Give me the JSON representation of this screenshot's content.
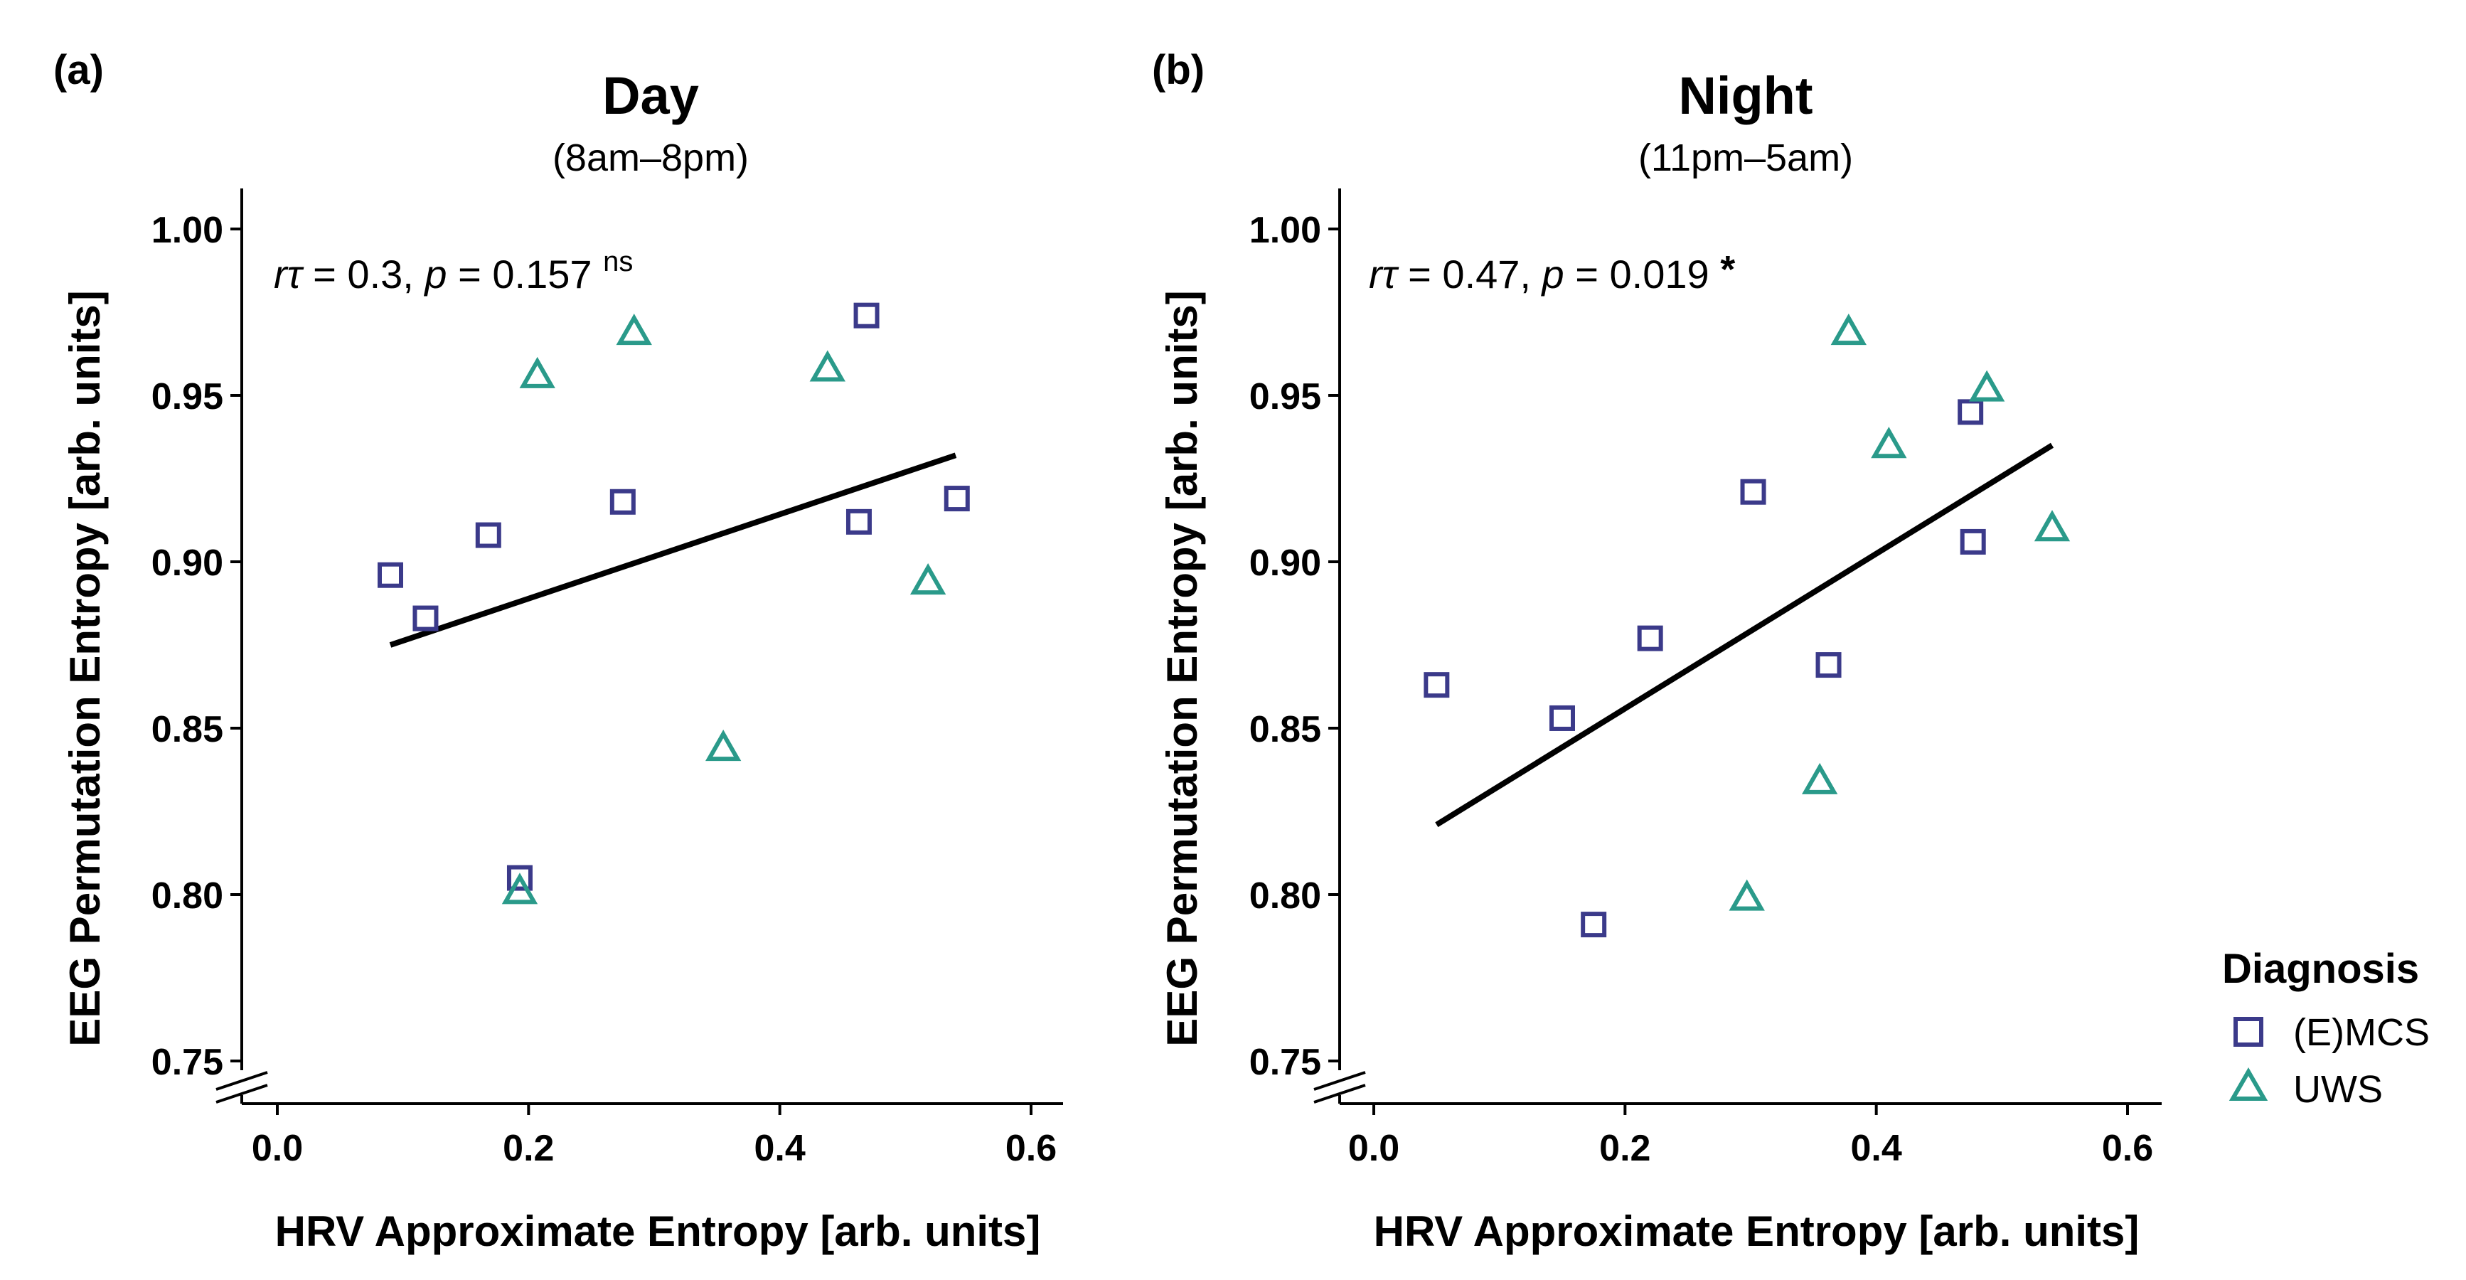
{
  "colors": {
    "emcs": "#3b3a8a",
    "uws": "#2a9a8a",
    "axis": "#000000",
    "fit": "#000000"
  },
  "legend": {
    "title": "Diagnosis",
    "items": [
      {
        "label": "(E)MCS",
        "marker": "square",
        "color": "#3b3a8a"
      },
      {
        "label": "UWS",
        "marker": "triangle",
        "color": "#2a9a8a"
      }
    ]
  },
  "chart_data": [
    {
      "type": "scatter",
      "panel": "(a)",
      "title": "Day",
      "subtitle": "(8am–8pm)",
      "xlabel": "HRV Approximate Entropy [arb. units]",
      "ylabel": "EEG Permutation Entropy [arb. units]",
      "xlim": [
        -0.03,
        0.63
      ],
      "ylim": [
        0.74,
        1.012
      ],
      "xticks": [
        0.0,
        0.2,
        0.4,
        0.6
      ],
      "xtick_labels": [
        "0.0",
        "0.2",
        "0.4",
        "0.6"
      ],
      "yticks": [
        0.75,
        0.8,
        0.85,
        0.9,
        0.95,
        1.0
      ],
      "ytick_labels": [
        "0.75",
        "0.80",
        "0.85",
        "0.90",
        "0.95",
        "1.00"
      ],
      "stat": {
        "prefix": "r",
        "tau": "τ",
        "eq": " = 0.3, ",
        "p": "p",
        "p_eq": " = 0.157 ",
        "sig": "ns"
      },
      "fit_line": {
        "x": [
          0.09,
          0.54
        ],
        "y": [
          0.875,
          0.932
        ]
      },
      "series": [
        {
          "name": "(E)MCS",
          "marker": "square",
          "x": [
            0.09,
            0.118,
            0.168,
            0.193,
            0.275,
            0.463,
            0.469,
            0.541
          ],
          "y": [
            0.896,
            0.883,
            0.908,
            0.805,
            0.918,
            0.912,
            0.974,
            0.919
          ]
        },
        {
          "name": "UWS",
          "marker": "triangle",
          "x": [
            0.193,
            0.207,
            0.284,
            0.355,
            0.438,
            0.518
          ],
          "y": [
            0.801,
            0.956,
            0.969,
            0.844,
            0.958,
            0.894
          ]
        }
      ]
    },
    {
      "type": "scatter",
      "panel": "(b)",
      "title": "Night",
      "subtitle": "(11pm–5am)",
      "xlabel": "HRV Approximate Entropy [arb. units]",
      "ylabel": "EEG Permutation Entropy [arb. units]",
      "xlim": [
        -0.03,
        0.63
      ],
      "ylim": [
        0.74,
        1.012
      ],
      "xticks": [
        0.0,
        0.2,
        0.4,
        0.6
      ],
      "xtick_labels": [
        "0.0",
        "0.2",
        "0.4",
        "0.6"
      ],
      "yticks": [
        0.75,
        0.8,
        0.85,
        0.9,
        0.95,
        1.0
      ],
      "ytick_labels": [
        "0.75",
        "0.80",
        "0.85",
        "0.90",
        "0.95",
        "1.00"
      ],
      "stat": {
        "prefix": "r",
        "tau": "τ",
        "eq": " = 0.47, ",
        "p": "p",
        "p_eq": " = 0.019 ",
        "sig": "*"
      },
      "fit_line": {
        "x": [
          0.05,
          0.54
        ],
        "y": [
          0.821,
          0.935
        ]
      },
      "series": [
        {
          "name": "(E)MCS",
          "marker": "square",
          "x": [
            0.05,
            0.15,
            0.175,
            0.22,
            0.302,
            0.362,
            0.475,
            0.477
          ],
          "y": [
            0.863,
            0.853,
            0.791,
            0.877,
            0.921,
            0.869,
            0.945,
            0.906
          ]
        },
        {
          "name": "UWS",
          "marker": "triangle",
          "x": [
            0.297,
            0.355,
            0.378,
            0.41,
            0.488,
            0.54
          ],
          "y": [
            0.799,
            0.834,
            0.969,
            0.935,
            0.952,
            0.91
          ]
        }
      ]
    }
  ]
}
